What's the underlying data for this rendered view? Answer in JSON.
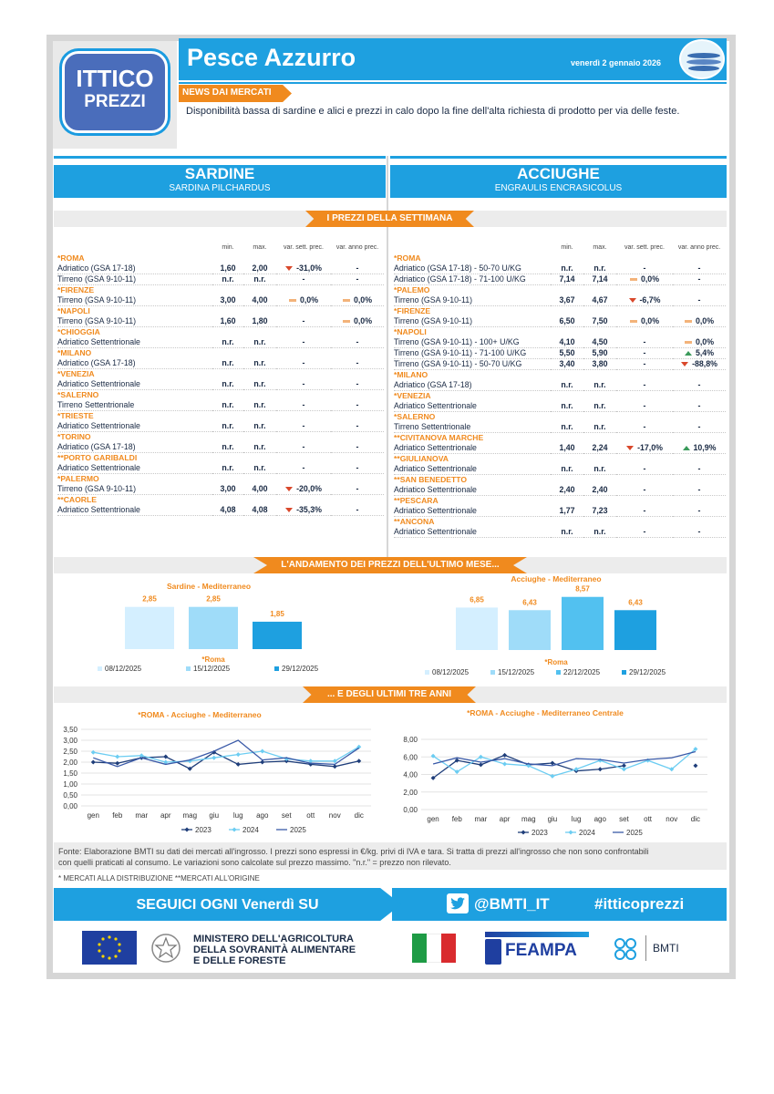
{
  "header": {
    "brand_line1": "ITTICO",
    "brand_line2": "PREZZI",
    "title": "Pesce Azzurro",
    "date": "venerdì 2 gennaio 2026",
    "news_tag": "NEWS DAI MERCATI",
    "news_text": "Disponibilità bassa di sardine e alici e prezzi in calo dopo la fine dell'alta richiesta di prodotto per via delle feste."
  },
  "species": {
    "left": {
      "name": "SARDINE",
      "latin": "SARDINA PILCHARDUS"
    },
    "right": {
      "name": "ACCIUGHE",
      "latin": "ENGRAULIS ENCRASICOLUS"
    }
  },
  "sections": {
    "weekly": "I PREZZI DELLA SETTIMANA",
    "month": "L'ANDAMENTO DEI PREZZI DELL'ULTIMO MESE...",
    "years": "... E DEGLI ULTIMI TRE ANNI"
  },
  "table_headers": {
    "min": "min.",
    "max": "max.",
    "var_week": "var. sett. prec.",
    "var_year": "var. anno prec."
  },
  "sardine_rows": [
    {
      "type": "city",
      "label": "*ROMA"
    },
    {
      "type": "row",
      "label": "Adriatico (GSA 17-18)",
      "min": "1,60",
      "max": "2,00",
      "vw": "-31,0%",
      "vw_dir": "down",
      "vy": "-",
      "vy_dir": ""
    },
    {
      "type": "row",
      "label": "Tirreno (GSA 9-10-11)",
      "min": "n.r.",
      "max": "n.r.",
      "vw": "-",
      "vw_dir": "",
      "vy": "-",
      "vy_dir": ""
    },
    {
      "type": "city",
      "label": "*FIRENZE"
    },
    {
      "type": "row",
      "label": "Tirreno (GSA 9-10-11)",
      "min": "3,00",
      "max": "4,00",
      "vw": "0,0%",
      "vw_dir": "eq",
      "vy": "0,0%",
      "vy_dir": "eq"
    },
    {
      "type": "city",
      "label": "*NAPOLI"
    },
    {
      "type": "row",
      "label": "Tirreno (GSA 9-10-11)",
      "min": "1,60",
      "max": "1,80",
      "vw": "-",
      "vw_dir": "",
      "vy": "0,0%",
      "vy_dir": "eq"
    },
    {
      "type": "city",
      "label": "*CHIOGGIA"
    },
    {
      "type": "row",
      "label": "Adriatico Settentrionale",
      "min": "n.r.",
      "max": "n.r.",
      "vw": "-",
      "vw_dir": "",
      "vy": "-",
      "vy_dir": ""
    },
    {
      "type": "city",
      "label": "*MILANO"
    },
    {
      "type": "row",
      "label": "Adriatico (GSA 17-18)",
      "min": "n.r.",
      "max": "n.r.",
      "vw": "-",
      "vw_dir": "",
      "vy": "-",
      "vy_dir": ""
    },
    {
      "type": "city",
      "label": "*VENEZIA"
    },
    {
      "type": "row",
      "label": "Adriatico Settentrionale",
      "min": "n.r.",
      "max": "n.r.",
      "vw": "-",
      "vw_dir": "",
      "vy": "-",
      "vy_dir": ""
    },
    {
      "type": "city",
      "label": "*SALERNO"
    },
    {
      "type": "row",
      "label": "Tirreno Settentrionale",
      "min": "n.r.",
      "max": "n.r.",
      "vw": "-",
      "vw_dir": "",
      "vy": "-",
      "vy_dir": ""
    },
    {
      "type": "city",
      "label": "*TRIESTE"
    },
    {
      "type": "row",
      "label": "Adriatico Settentrionale",
      "min": "n.r.",
      "max": "n.r.",
      "vw": "-",
      "vw_dir": "",
      "vy": "-",
      "vy_dir": ""
    },
    {
      "type": "city",
      "label": "*TORINO"
    },
    {
      "type": "row",
      "label": "Adriatico (GSA 17-18)",
      "min": "n.r.",
      "max": "n.r.",
      "vw": "-",
      "vw_dir": "",
      "vy": "-",
      "vy_dir": ""
    },
    {
      "type": "city",
      "label": "**PORTO GARIBALDI"
    },
    {
      "type": "row",
      "label": "Adriatico Settentrionale",
      "min": "n.r.",
      "max": "n.r.",
      "vw": "-",
      "vw_dir": "",
      "vy": "-",
      "vy_dir": ""
    },
    {
      "type": "city",
      "label": "*PALERMO"
    },
    {
      "type": "row",
      "label": "Tirreno (GSA 9-10-11)",
      "min": "3,00",
      "max": "4,00",
      "vw": "-20,0%",
      "vw_dir": "down",
      "vy": "-",
      "vy_dir": ""
    },
    {
      "type": "city",
      "label": "**CAORLE"
    },
    {
      "type": "row",
      "label": "Adriatico Settentrionale",
      "min": "4,08",
      "max": "4,08",
      "vw": "-35,3%",
      "vw_dir": "down",
      "vy": "-",
      "vy_dir": ""
    }
  ],
  "acciughe_rows": [
    {
      "type": "city",
      "label": "*ROMA"
    },
    {
      "type": "row",
      "label": "Adriatico (GSA 17-18) - 50-70 U/KG",
      "min": "n.r.",
      "max": "n.r.",
      "vw": "-",
      "vw_dir": "",
      "vy": "-",
      "vy_dir": ""
    },
    {
      "type": "row",
      "label": "Adriatico (GSA 17-18) - 71-100 U/KG",
      "min": "7,14",
      "max": "7,14",
      "vw": "0,0%",
      "vw_dir": "eq",
      "vy": "-",
      "vy_dir": ""
    },
    {
      "type": "city",
      "label": "*PALEMO"
    },
    {
      "type": "row",
      "label": "Tirreno (GSA 9-10-11)",
      "min": "3,67",
      "max": "4,67",
      "vw": "-6,7%",
      "vw_dir": "down",
      "vy": "-",
      "vy_dir": ""
    },
    {
      "type": "city",
      "label": "*FIRENZE"
    },
    {
      "type": "row",
      "label": "Tirreno (GSA 9-10-11)",
      "min": "6,50",
      "max": "7,50",
      "vw": "0,0%",
      "vw_dir": "eq",
      "vy": "0,0%",
      "vy_dir": "eq"
    },
    {
      "type": "city",
      "label": "*NAPOLI"
    },
    {
      "type": "row",
      "label": "Tirreno (GSA 9-10-11) - 100+ U/KG",
      "min": "4,10",
      "max": "4,50",
      "vw": "-",
      "vw_dir": "",
      "vy": "0,0%",
      "vy_dir": "eq"
    },
    {
      "type": "row",
      "label": "Tirreno (GSA 9-10-11) - 71-100 U/KG",
      "min": "5,50",
      "max": "5,90",
      "vw": "-",
      "vw_dir": "",
      "vy": "5,4%",
      "vy_dir": "up"
    },
    {
      "type": "row",
      "label": "Tirreno (GSA 9-10-11) - 50-70 U/KG",
      "min": "3,40",
      "max": "3,80",
      "vw": "-",
      "vw_dir": "",
      "vy": "-88,8%",
      "vy_dir": "down"
    },
    {
      "type": "city",
      "label": "*MILANO"
    },
    {
      "type": "row",
      "label": "Adriatico (GSA 17-18)",
      "min": "n.r.",
      "max": "n.r.",
      "vw": "-",
      "vw_dir": "",
      "vy": "-",
      "vy_dir": ""
    },
    {
      "type": "city",
      "label": "*VENEZIA"
    },
    {
      "type": "row",
      "label": "Adriatico Settentrionale",
      "min": "n.r.",
      "max": "n.r.",
      "vw": "-",
      "vw_dir": "",
      "vy": "-",
      "vy_dir": ""
    },
    {
      "type": "city",
      "label": "*SALERNO"
    },
    {
      "type": "row",
      "label": "Tirreno Settentrionale",
      "min": "n.r.",
      "max": "n.r.",
      "vw": "-",
      "vw_dir": "",
      "vy": "-",
      "vy_dir": ""
    },
    {
      "type": "city",
      "label": "**CIVITANOVA MARCHE"
    },
    {
      "type": "row",
      "label": "Adriatico Settentrionale",
      "min": "1,40",
      "max": "2,24",
      "vw": "-17,0%",
      "vw_dir": "down",
      "vy": "10,9%",
      "vy_dir": "up"
    },
    {
      "type": "city",
      "label": "**GIULIANOVA"
    },
    {
      "type": "row",
      "label": "Adriatico Settentrionale",
      "min": "n.r.",
      "max": "n.r.",
      "vw": "-",
      "vw_dir": "",
      "vy": "-",
      "vy_dir": ""
    },
    {
      "type": "city",
      "label": "**SAN BENEDETTO"
    },
    {
      "type": "row",
      "label": "Adriatico Settentrionale",
      "min": "2,40",
      "max": "2,40",
      "vw": "-",
      "vw_dir": "",
      "vy": "-",
      "vy_dir": ""
    },
    {
      "type": "city",
      "label": "**PESCARA"
    },
    {
      "type": "row",
      "label": "Adriatico Settentrionale",
      "min": "1,77",
      "max": "7,23",
      "vw": "-",
      "vw_dir": "",
      "vy": "-",
      "vy_dir": ""
    },
    {
      "type": "city",
      "label": "**ANCONA"
    },
    {
      "type": "row",
      "label": "Adriatico Settentrionale",
      "min": "n.r.",
      "max": "n.r.",
      "vw": "-",
      "vw_dir": "",
      "vy": "-",
      "vy_dir": ""
    }
  ],
  "chart_data": [
    {
      "type": "bar",
      "title": "Sardine - Mediterraneo",
      "xlabel": "*Roma",
      "series": [
        {
          "name": "08/12/2025",
          "values": [
            2.85
          ],
          "label": "2,85",
          "color": "#d4efff"
        },
        {
          "name": "15/12/2025",
          "values": [
            2.85
          ],
          "label": "2,85",
          "color": "#9fdcf9"
        },
        {
          "name": "29/12/2025",
          "values": [
            1.85
          ],
          "label": "1,85",
          "color": "#1ea0e0"
        }
      ],
      "ylim": [
        0,
        4
      ]
    },
    {
      "type": "bar",
      "title": "Acciughe - Mediterraneo",
      "xlabel": "*Roma",
      "series": [
        {
          "name": "08/12/2025",
          "values": [
            6.85
          ],
          "label": "6,85",
          "color": "#d4efff"
        },
        {
          "name": "15/12/2025",
          "values": [
            6.43
          ],
          "label": "6,43",
          "color": "#9fdcf9"
        },
        {
          "name": "22/12/2025",
          "values": [
            8.57
          ],
          "label": "8,57",
          "color": "#52c1f0"
        },
        {
          "name": "29/12/2025",
          "values": [
            6.43
          ],
          "label": "6,43",
          "color": "#1ea0e0"
        }
      ],
      "ylim": [
        0,
        10
      ]
    },
    {
      "type": "line",
      "title": "*ROMA - Acciughe - Mediterraneo",
      "categories": [
        "gen",
        "feb",
        "mar",
        "apr",
        "mag",
        "giu",
        "lug",
        "ago",
        "set",
        "ott",
        "nov",
        "dic"
      ],
      "y_ticks": [
        "0,00",
        "0,50",
        "1,00",
        "1,50",
        "2,00",
        "2,50",
        "3,00",
        "3,50"
      ],
      "ylim": [
        0,
        3.5
      ],
      "series": [
        {
          "name": "2023",
          "color": "#1f3e7a",
          "marker": "diamond",
          "values": [
            2.0,
            1.95,
            2.2,
            2.25,
            1.7,
            2.45,
            1.9,
            2.0,
            2.05,
            1.9,
            1.8,
            2.05
          ]
        },
        {
          "name": "2024",
          "color": "#6ccdf2",
          "marker": "diamond",
          "values": [
            2.45,
            2.25,
            2.3,
            2.0,
            2.05,
            2.2,
            2.35,
            2.5,
            2.15,
            2.05,
            2.05,
            2.7
          ]
        },
        {
          "name": "2025",
          "color": "#3a5aa8",
          "marker": "none",
          "values": [
            2.2,
            1.8,
            2.2,
            1.9,
            2.1,
            2.5,
            3.0,
            2.1,
            2.2,
            1.95,
            1.9,
            2.65
          ]
        }
      ]
    },
    {
      "type": "line",
      "title": "*ROMA - Acciughe - Mediterraneo Centrale",
      "categories": [
        "gen",
        "feb",
        "mar",
        "apr",
        "mag",
        "giu",
        "lug",
        "ago",
        "set",
        "ott",
        "nov",
        "dic"
      ],
      "y_ticks": [
        "0,00",
        "2,00",
        "4,00",
        "6,00",
        "8,00"
      ],
      "ylim": [
        0,
        8
      ],
      "series": [
        {
          "name": "2023",
          "color": "#1f3e7a",
          "marker": "diamond",
          "values": [
            3.6,
            5.6,
            5.1,
            6.2,
            5.1,
            5.3,
            4.4,
            4.6,
            5.0,
            null,
            null,
            5.0
          ]
        },
        {
          "name": "2024",
          "color": "#6ccdf2",
          "marker": "diamond",
          "values": [
            6.1,
            4.3,
            6.0,
            5.2,
            5.0,
            3.8,
            4.6,
            5.6,
            4.6,
            5.6,
            4.6,
            6.9
          ]
        },
        {
          "name": "2025",
          "color": "#3a5aa8",
          "marker": "none",
          "values": [
            5.2,
            5.9,
            5.4,
            5.8,
            5.2,
            5.0,
            5.8,
            5.7,
            5.3,
            5.7,
            5.9,
            6.6
          ]
        }
      ]
    }
  ],
  "notes": {
    "fonte": "Fonte: Elaborazione BMTI su dati dei mercati all'ingrosso. I prezzi sono espressi in €/kg. privi di IVA e tara. Si tratta di prezzi all'ingrosso che non sono confrontabili con quelli praticati al consumo. Le variazioni sono calcolate sul prezzo massimo. \"n.r.\" = prezzo non rilevato.",
    "mercati": "* MERCATI ALLA DISTRIBUZIONE **MERCATI ALL'ORIGINE"
  },
  "social": {
    "follow": "SEGUICI OGNI Venerdì SU",
    "handle": "@BMTI_IT",
    "hashtag": "#itticoprezzi"
  },
  "logos": {
    "ministry_line1": "MINISTERO DELL'AGRICOLTURA",
    "ministry_line2": "DELLA SOVRANITÀ ALIMENTARE",
    "ministry_line3": "E DELLE FORESTE",
    "feampa": "FEAMPA",
    "bmti": "BMTI"
  },
  "colors": {
    "accent": "#1ea0e0",
    "orange": "#f08a1e",
    "navy": "#1f3e7a"
  }
}
